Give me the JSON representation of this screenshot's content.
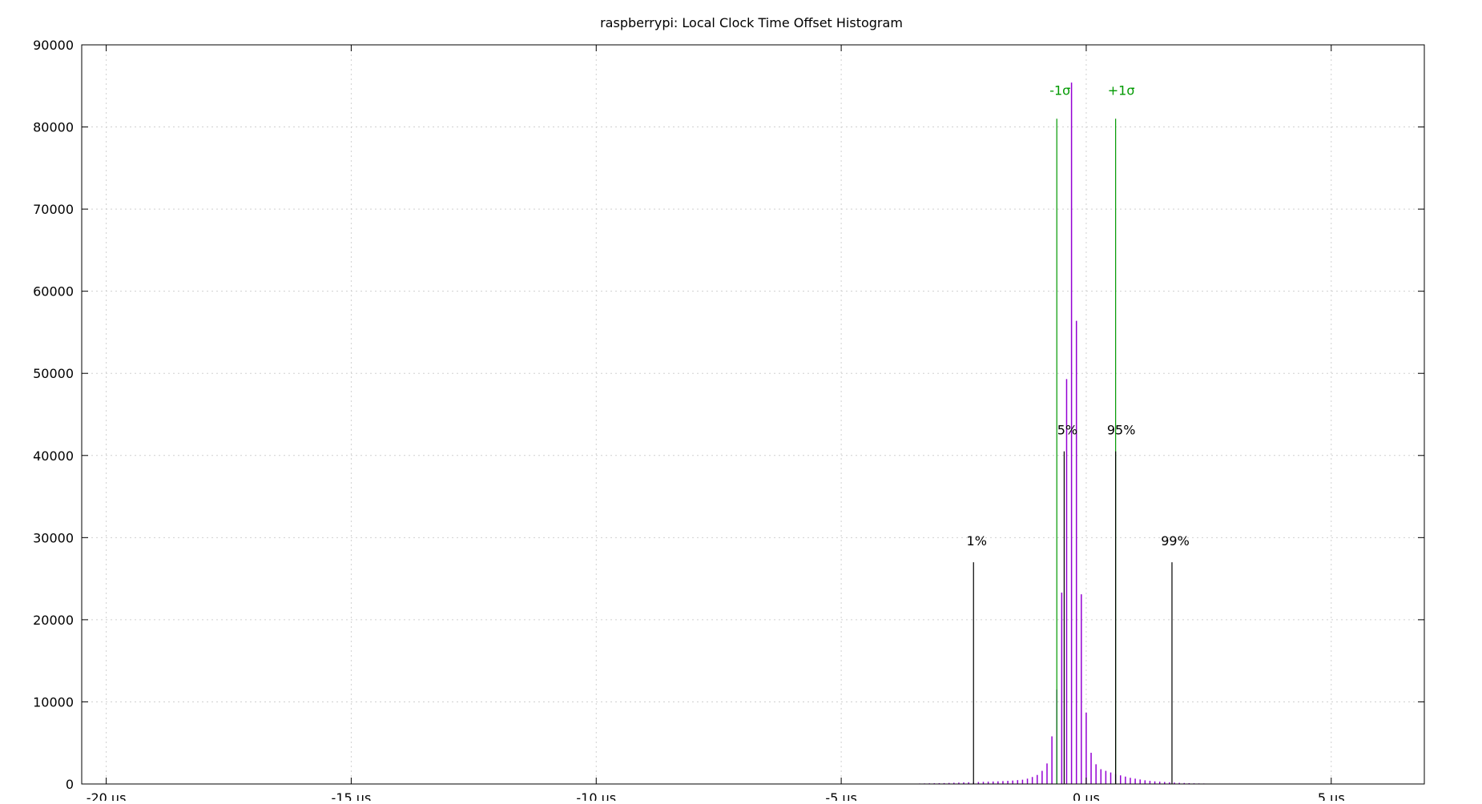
{
  "chart_data": {
    "type": "bar",
    "title": "raspberrypi: Local Clock Time Offset Histogram",
    "xlabel": "",
    "ylabel": "",
    "xlim": [
      -20.5,
      6.9
    ],
    "ylim": [
      0,
      90000
    ],
    "grid": true,
    "x_ticks": [
      {
        "value": -20,
        "label": "-20 µs"
      },
      {
        "value": -15,
        "label": "-15 µs"
      },
      {
        "value": -10,
        "label": "-10 µs"
      },
      {
        "value": -5,
        "label": "-5 µs"
      },
      {
        "value": 0,
        "label": "0 µs"
      },
      {
        "value": 5,
        "label": "5 µs"
      }
    ],
    "y_ticks": [
      0,
      10000,
      20000,
      30000,
      40000,
      50000,
      60000,
      70000,
      80000,
      90000
    ],
    "colors": {
      "histogram": "#9400d3",
      "sigma": "#009900",
      "percentile": "#000000",
      "grid": "#d0d0d0",
      "axis": "#000000"
    },
    "series": [
      {
        "x": [
          -3.9,
          -3.8,
          -3.7,
          -3.6,
          -3.5,
          -3.4,
          -3.3,
          -3.2,
          -3.1,
          -3.0,
          -2.9,
          -2.8,
          -2.7,
          -2.6,
          -2.5,
          -2.4,
          -2.3,
          -2.2,
          -2.1,
          -2.0,
          -1.9,
          -1.8,
          -1.7,
          -1.6,
          -1.5,
          -1.4,
          -1.3,
          -1.2,
          -1.1,
          -1.0,
          -0.9,
          -0.8,
          -0.7,
          -0.6,
          -0.5,
          -0.4,
          -0.3,
          -0.2,
          -0.1,
          0.0,
          0.1,
          0.2,
          0.3,
          0.4,
          0.5,
          0.6,
          0.7,
          0.8,
          0.9,
          1.0,
          1.1,
          1.2,
          1.3,
          1.4,
          1.5,
          1.6,
          1.7,
          1.8,
          1.9,
          2.0,
          2.1,
          2.2,
          2.3,
          2.4,
          2.5,
          2.6,
          2.7,
          2.8,
          2.9,
          3.0,
          3.1,
          3.2,
          3.3,
          3.4
        ],
        "values": [
          20,
          30,
          30,
          40,
          50,
          60,
          70,
          80,
          90,
          100,
          110,
          130,
          150,
          170,
          190,
          210,
          220,
          240,
          260,
          280,
          300,
          320,
          350,
          380,
          420,
          470,
          520,
          650,
          850,
          1100,
          1600,
          2500,
          5800,
          11500,
          23300,
          49300,
          85400,
          56400,
          23100,
          8700,
          3800,
          2400,
          1800,
          1600,
          1400,
          1200,
          1050,
          900,
          750,
          650,
          550,
          450,
          380,
          320,
          280,
          240,
          200,
          170,
          140,
          120,
          100,
          80,
          70,
          60,
          50,
          40,
          30,
          25,
          20,
          15,
          12,
          10,
          8,
          5
        ]
      }
    ],
    "sigma_lines": [
      {
        "label": "-1σ",
        "x": -0.6,
        "height": 81000
      },
      {
        "label": "+1σ",
        "x": 0.6,
        "height": 81000
      }
    ],
    "percentile_lines": [
      {
        "label": "1%",
        "x": -2.3,
        "height": 27000
      },
      {
        "label": "5%",
        "x": -0.45,
        "height": 40500
      },
      {
        "label": "95%",
        "x": 0.6,
        "height": 40500
      },
      {
        "label": "99%",
        "x": 1.75,
        "height": 27000
      }
    ]
  }
}
